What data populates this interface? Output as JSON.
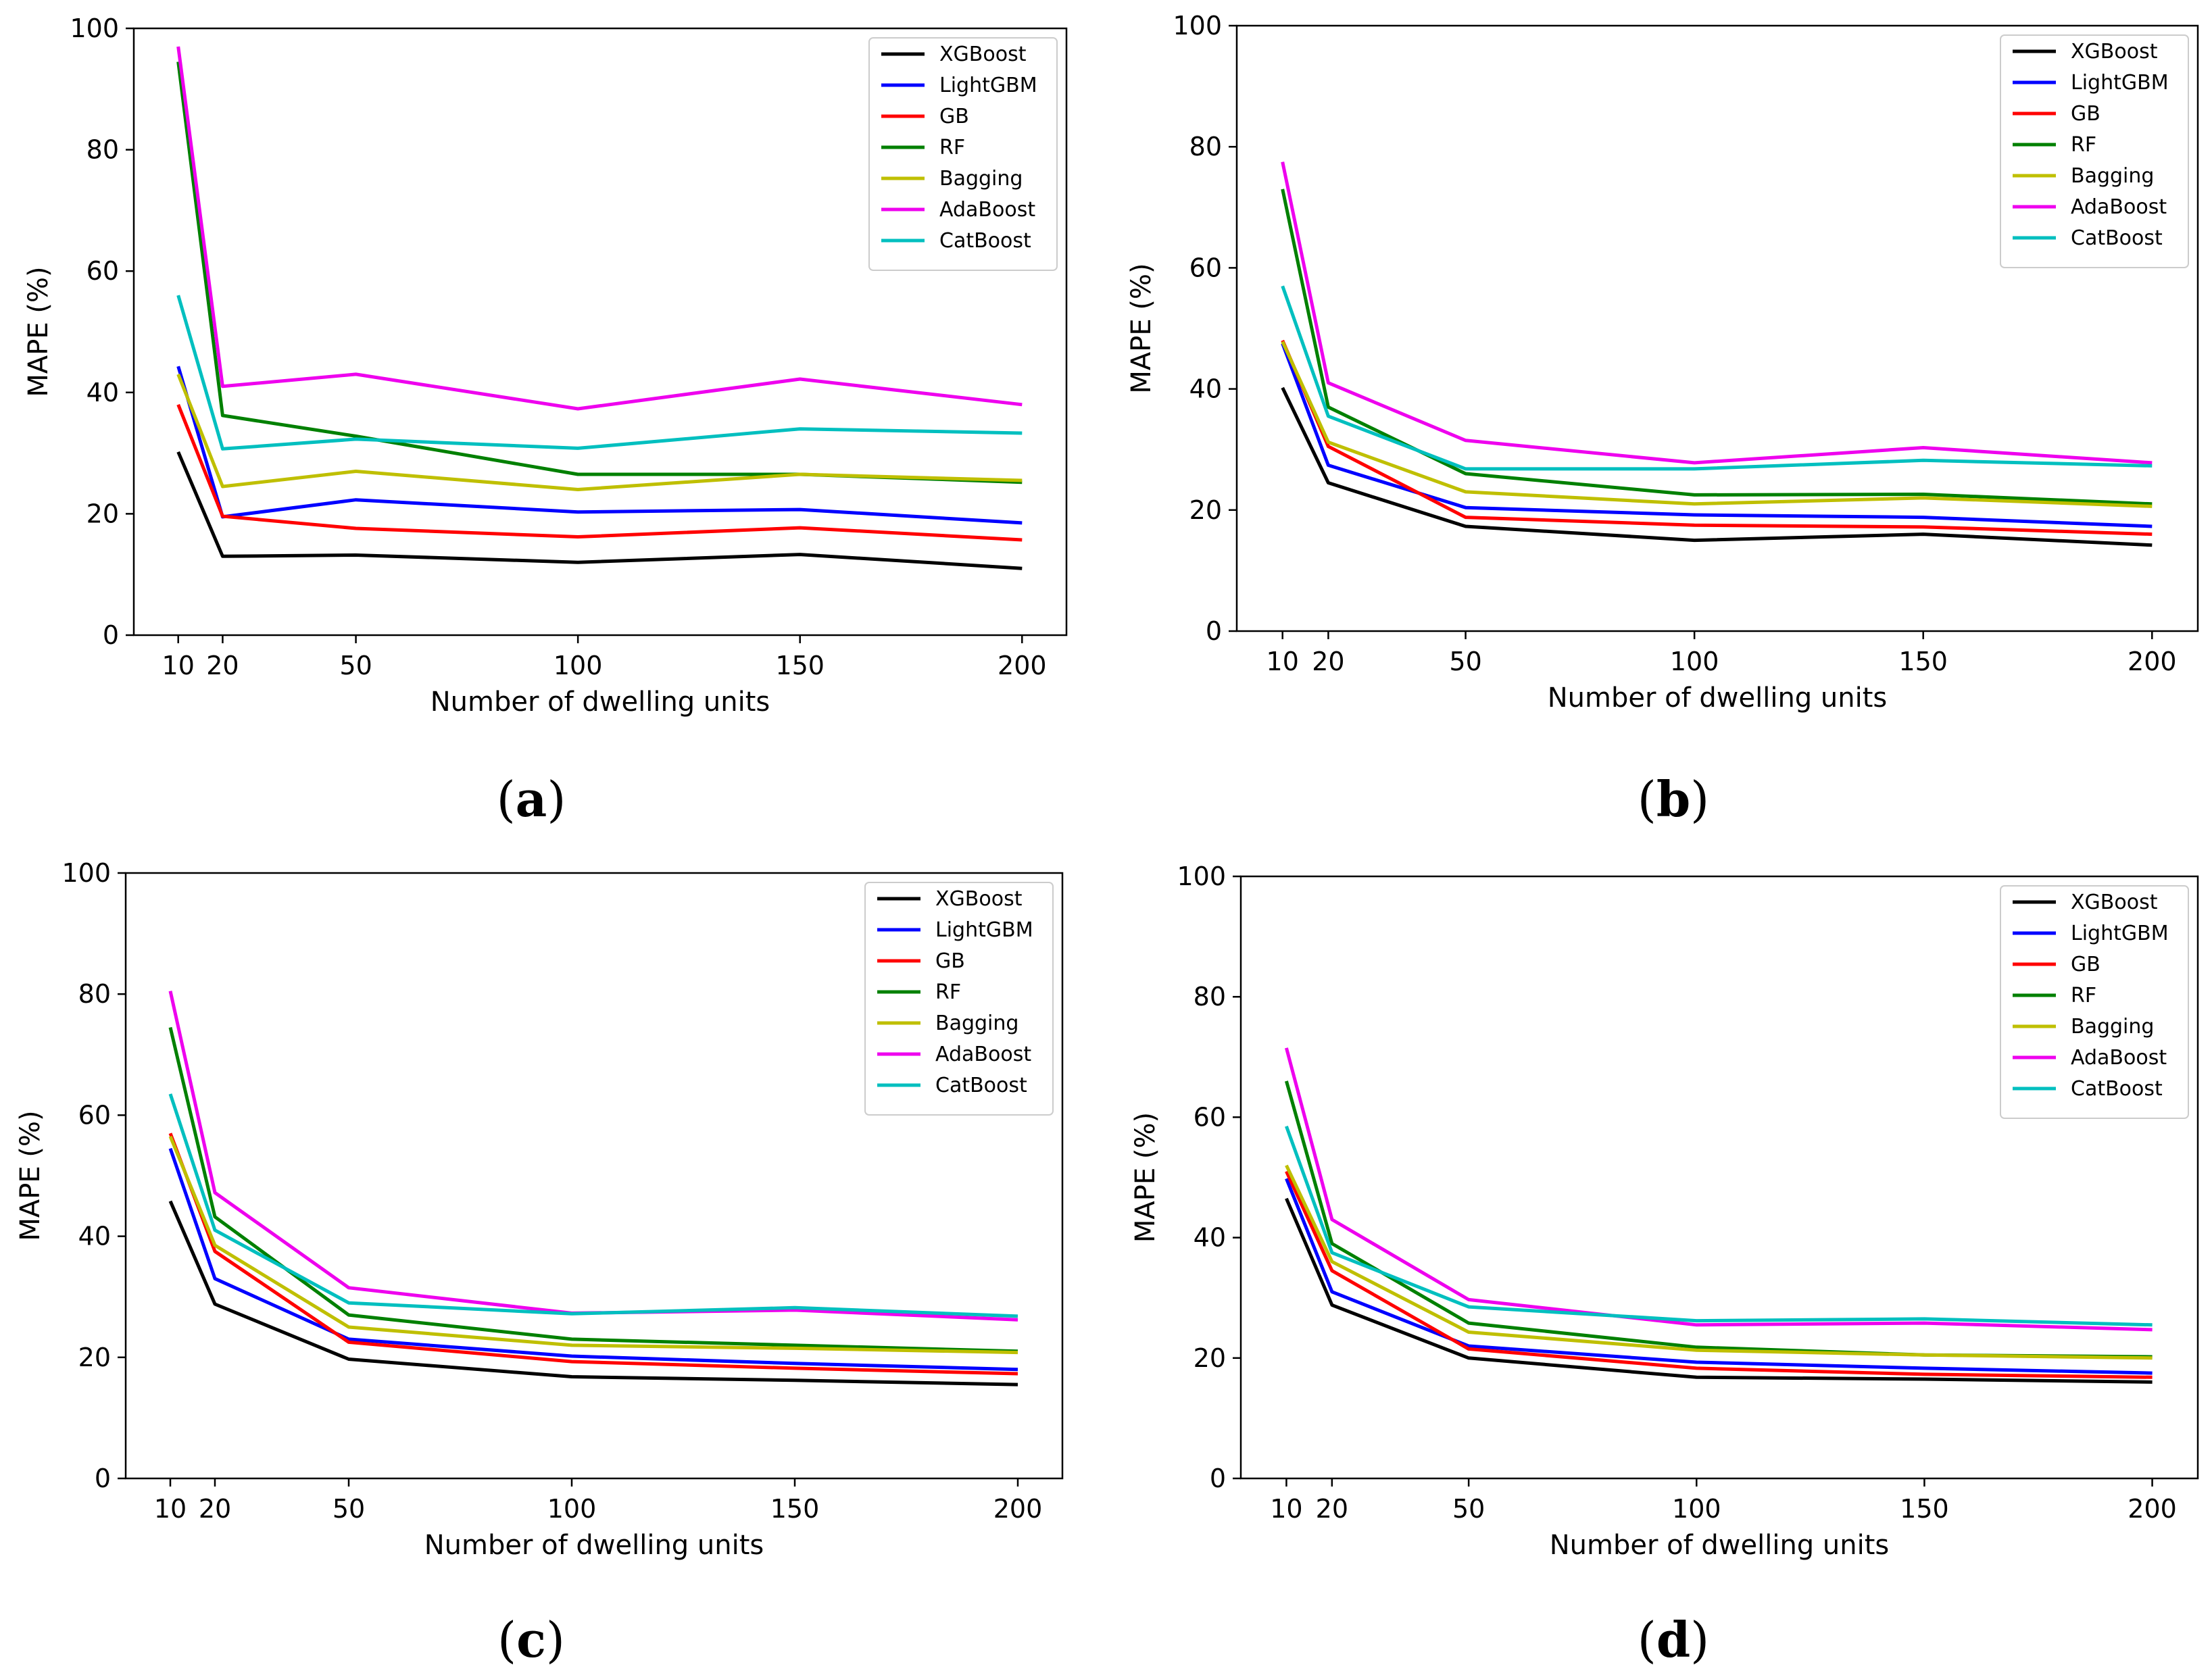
{
  "figure": {
    "panels": [
      {
        "caption": {
          "open": "(",
          "letter": "a",
          "close": ")"
        },
        "chart_data": {
          "type": "line",
          "title": "",
          "xlabel": "Number of dwelling units",
          "ylabel": "MAPE (%)",
          "x": [
            10,
            20,
            50,
            100,
            150,
            200
          ],
          "xticks": [
            "10",
            "20",
            "50",
            "100",
            "150",
            "200"
          ],
          "yticks": [
            "0",
            "20",
            "40",
            "60",
            "80",
            "100"
          ],
          "xlim": [
            0,
            210
          ],
          "ylim": [
            0,
            100
          ],
          "legend_position": "top-right",
          "series": [
            {
              "name": "XGBoost",
              "color": "#000000",
              "values": [
                30.2,
                13.0,
                13.2,
                12.0,
                13.3,
                11.0
              ]
            },
            {
              "name": "LightGBM",
              "color": "#0000ff",
              "values": [
                44.3,
                19.5,
                22.3,
                20.3,
                20.7,
                18.5
              ]
            },
            {
              "name": "GB",
              "color": "#ff0000",
              "values": [
                38.0,
                19.6,
                17.6,
                16.2,
                17.7,
                15.7
              ]
            },
            {
              "name": "RF",
              "color": "#008000",
              "values": [
                94.5,
                36.2,
                32.8,
                26.5,
                26.5,
                25.2
              ]
            },
            {
              "name": "Bagging",
              "color": "#bfbf00",
              "values": [
                43.0,
                24.5,
                27.0,
                24.0,
                26.5,
                25.5
              ]
            },
            {
              "name": "AdaBoost",
              "color": "#ee00ee",
              "values": [
                97.0,
                41.0,
                43.0,
                37.3,
                42.2,
                38.0
              ]
            },
            {
              "name": "CatBoost",
              "color": "#00bfbf",
              "values": [
                56.0,
                30.7,
                32.3,
                30.8,
                34.0,
                33.3
              ]
            }
          ]
        }
      },
      {
        "caption": {
          "open": "(",
          "letter": "b",
          "close": ")"
        },
        "chart_data": {
          "type": "line",
          "title": "",
          "xlabel": "Number of dwelling units",
          "ylabel": "MAPE (%)",
          "x": [
            10,
            20,
            50,
            100,
            150,
            200
          ],
          "xticks": [
            "10",
            "20",
            "50",
            "100",
            "150",
            "200"
          ],
          "yticks": [
            "0",
            "20",
            "40",
            "60",
            "80",
            "100"
          ],
          "xlim": [
            0,
            210
          ],
          "ylim": [
            0,
            100
          ],
          "legend_position": "top-right",
          "series": [
            {
              "name": "XGBoost",
              "color": "#000000",
              "values": [
                40.2,
                24.5,
                17.3,
                15.0,
                16.0,
                14.2
              ]
            },
            {
              "name": "LightGBM",
              "color": "#0000ff",
              "values": [
                47.5,
                27.4,
                20.4,
                19.2,
                18.8,
                17.3
              ]
            },
            {
              "name": "GB",
              "color": "#ff0000",
              "values": [
                48.0,
                30.5,
                18.8,
                17.5,
                17.2,
                16.0
              ]
            },
            {
              "name": "RF",
              "color": "#008000",
              "values": [
                73.0,
                37.0,
                26.0,
                22.5,
                22.6,
                21.0
              ]
            },
            {
              "name": "Bagging",
              "color": "#bfbf00",
              "values": [
                47.8,
                31.2,
                23.0,
                21.0,
                22.0,
                20.6
              ]
            },
            {
              "name": "AdaBoost",
              "color": "#ee00ee",
              "values": [
                77.5,
                41.0,
                31.5,
                27.8,
                30.3,
                27.8
              ]
            },
            {
              "name": "CatBoost",
              "color": "#00bfbf",
              "values": [
                57.0,
                35.5,
                26.8,
                26.8,
                28.2,
                27.3
              ]
            }
          ]
        }
      },
      {
        "caption": {
          "open": "(",
          "letter": "c",
          "close": ")"
        },
        "chart_data": {
          "type": "line",
          "title": "",
          "xlabel": "Number of dwelling units",
          "ylabel": "MAPE (%)",
          "x": [
            10,
            20,
            50,
            100,
            150,
            200
          ],
          "xticks": [
            "10",
            "20",
            "50",
            "100",
            "150",
            "200"
          ],
          "yticks": [
            "0",
            "20",
            "40",
            "60",
            "80",
            "100"
          ],
          "xlim": [
            0,
            210
          ],
          "ylim": [
            0,
            100
          ],
          "legend_position": "top-right",
          "series": [
            {
              "name": "XGBoost",
              "color": "#000000",
              "values": [
                45.8,
                28.8,
                19.7,
                16.8,
                16.2,
                15.5
              ]
            },
            {
              "name": "LightGBM",
              "color": "#0000ff",
              "values": [
                54.5,
                33.0,
                23.0,
                20.2,
                19.0,
                18.0
              ]
            },
            {
              "name": "GB",
              "color": "#ff0000",
              "values": [
                57.0,
                37.5,
                22.5,
                19.3,
                18.2,
                17.3
              ]
            },
            {
              "name": "RF",
              "color": "#008000",
              "values": [
                74.5,
                43.2,
                27.0,
                23.0,
                22.0,
                21.0
              ]
            },
            {
              "name": "Bagging",
              "color": "#bfbf00",
              "values": [
                56.5,
                38.5,
                25.0,
                22.0,
                21.5,
                20.8
              ]
            },
            {
              "name": "AdaBoost",
              "color": "#ee00ee",
              "values": [
                80.5,
                47.2,
                31.5,
                27.3,
                27.8,
                26.2
              ]
            },
            {
              "name": "CatBoost",
              "color": "#00bfbf",
              "values": [
                63.5,
                41.0,
                29.0,
                27.2,
                28.2,
                26.8
              ]
            }
          ]
        }
      },
      {
        "caption": {
          "open": "(",
          "letter": "d",
          "close": ")"
        },
        "chart_data": {
          "type": "line",
          "title": "",
          "xlabel": "Number of dwelling units",
          "ylabel": "MAPE (%)",
          "x": [
            10,
            20,
            50,
            100,
            150,
            200
          ],
          "xticks": [
            "10",
            "20",
            "50",
            "100",
            "150",
            "200"
          ],
          "yticks": [
            "0",
            "20",
            "40",
            "60",
            "80",
            "100"
          ],
          "xlim": [
            0,
            210
          ],
          "ylim": [
            0,
            100
          ],
          "legend_position": "top-right",
          "series": [
            {
              "name": "XGBoost",
              "color": "#000000",
              "values": [
                46.5,
                28.8,
                20.0,
                16.8,
                16.5,
                16.0
              ]
            },
            {
              "name": "LightGBM",
              "color": "#0000ff",
              "values": [
                49.8,
                31.0,
                22.0,
                19.3,
                18.3,
                17.5
              ]
            },
            {
              "name": "GB",
              "color": "#ff0000",
              "values": [
                51.0,
                34.5,
                21.5,
                18.3,
                17.3,
                16.8
              ]
            },
            {
              "name": "RF",
              "color": "#008000",
              "values": [
                66.0,
                39.0,
                25.8,
                21.8,
                20.5,
                20.2
              ]
            },
            {
              "name": "Bagging",
              "color": "#bfbf00",
              "values": [
                52.0,
                36.0,
                24.3,
                21.3,
                20.5,
                20.0
              ]
            },
            {
              "name": "AdaBoost",
              "color": "#ee00ee",
              "values": [
                71.5,
                43.0,
                29.7,
                25.5,
                25.8,
                24.7
              ]
            },
            {
              "name": "CatBoost",
              "color": "#00bfbf",
              "values": [
                58.5,
                37.5,
                28.5,
                26.2,
                26.5,
                25.5
              ]
            }
          ]
        }
      }
    ]
  }
}
